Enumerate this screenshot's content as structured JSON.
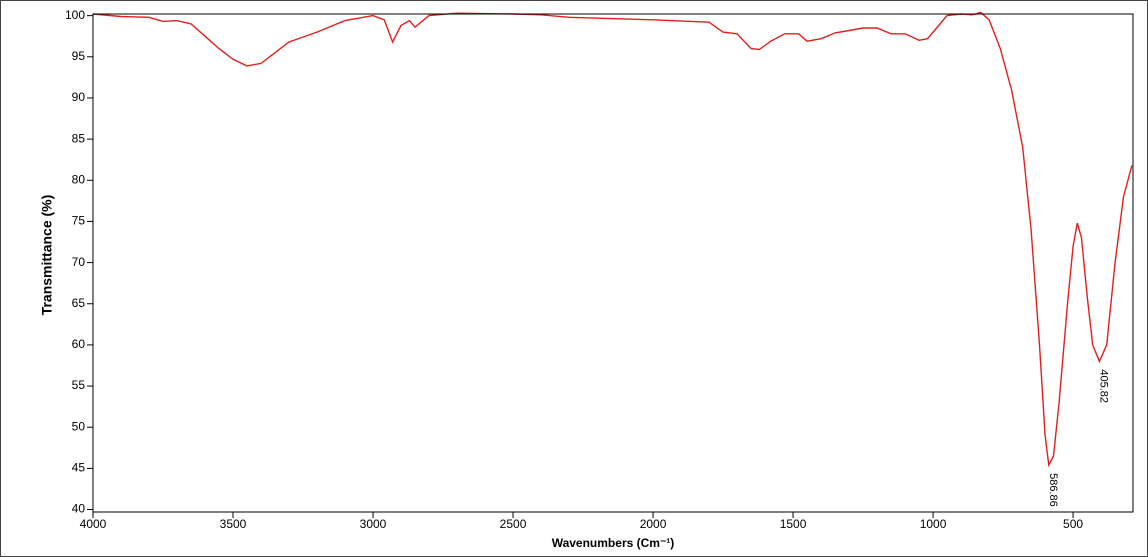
{
  "chart_data": {
    "type": "line",
    "y_label": "Transmittance (%)",
    "x_label": "Wavenumbers (Cm⁻¹)",
    "color": "#e0201c",
    "xlim": [
      4000,
      286
    ],
    "ylim": [
      39.7,
      100.2
    ],
    "xticks": [
      4000,
      3500,
      3000,
      2500,
      2000,
      1500,
      1000,
      500
    ],
    "yticks": [
      40,
      45,
      50,
      55,
      60,
      65,
      70,
      75,
      80,
      85,
      90,
      95,
      100
    ],
    "x": [
      4000,
      3900,
      3800,
      3750,
      3700,
      3650,
      3600,
      3550,
      3500,
      3450,
      3400,
      3350,
      3300,
      3200,
      3100,
      3000,
      2960,
      2930,
      2900,
      2870,
      2850,
      2800,
      2700,
      2500,
      2400,
      2300,
      2000,
      1800,
      1750,
      1700,
      1650,
      1620,
      1580,
      1530,
      1480,
      1450,
      1400,
      1350,
      1300,
      1250,
      1200,
      1150,
      1100,
      1050,
      1020,
      980,
      950,
      900,
      860,
      830,
      800,
      760,
      720,
      680,
      650,
      620,
      600,
      586.86,
      570,
      550,
      520,
      500,
      485,
      470,
      450,
      430,
      405.82,
      380,
      350,
      320,
      290
    ],
    "y": [
      100.2,
      99.9,
      99.8,
      99.3,
      99.4,
      99.0,
      97.5,
      96.0,
      94.7,
      93.9,
      94.2,
      95.5,
      96.8,
      98.0,
      99.4,
      100.0,
      99.5,
      96.8,
      98.8,
      99.4,
      98.6,
      100.0,
      100.3,
      100.2,
      100.1,
      99.8,
      99.5,
      99.2,
      98.0,
      97.8,
      96.0,
      95.9,
      96.9,
      97.8,
      97.8,
      96.9,
      97.2,
      97.9,
      98.2,
      98.5,
      98.5,
      97.8,
      97.8,
      97.0,
      97.2,
      98.8,
      100.0,
      100.2,
      100.1,
      100.4,
      99.5,
      96.0,
      91.0,
      84.0,
      74.0,
      60.0,
      49.0,
      45.4,
      46.5,
      53.0,
      65.0,
      72.0,
      74.8,
      73.0,
      66.0,
      60.0,
      58.0,
      60.0,
      70.0,
      78.0,
      81.8
    ],
    "annotations": [
      {
        "label": "586.86",
        "x": 586.86,
        "y": 45.4
      },
      {
        "label": "405.82",
        "x": 405.82,
        "y": 58.0
      }
    ]
  }
}
